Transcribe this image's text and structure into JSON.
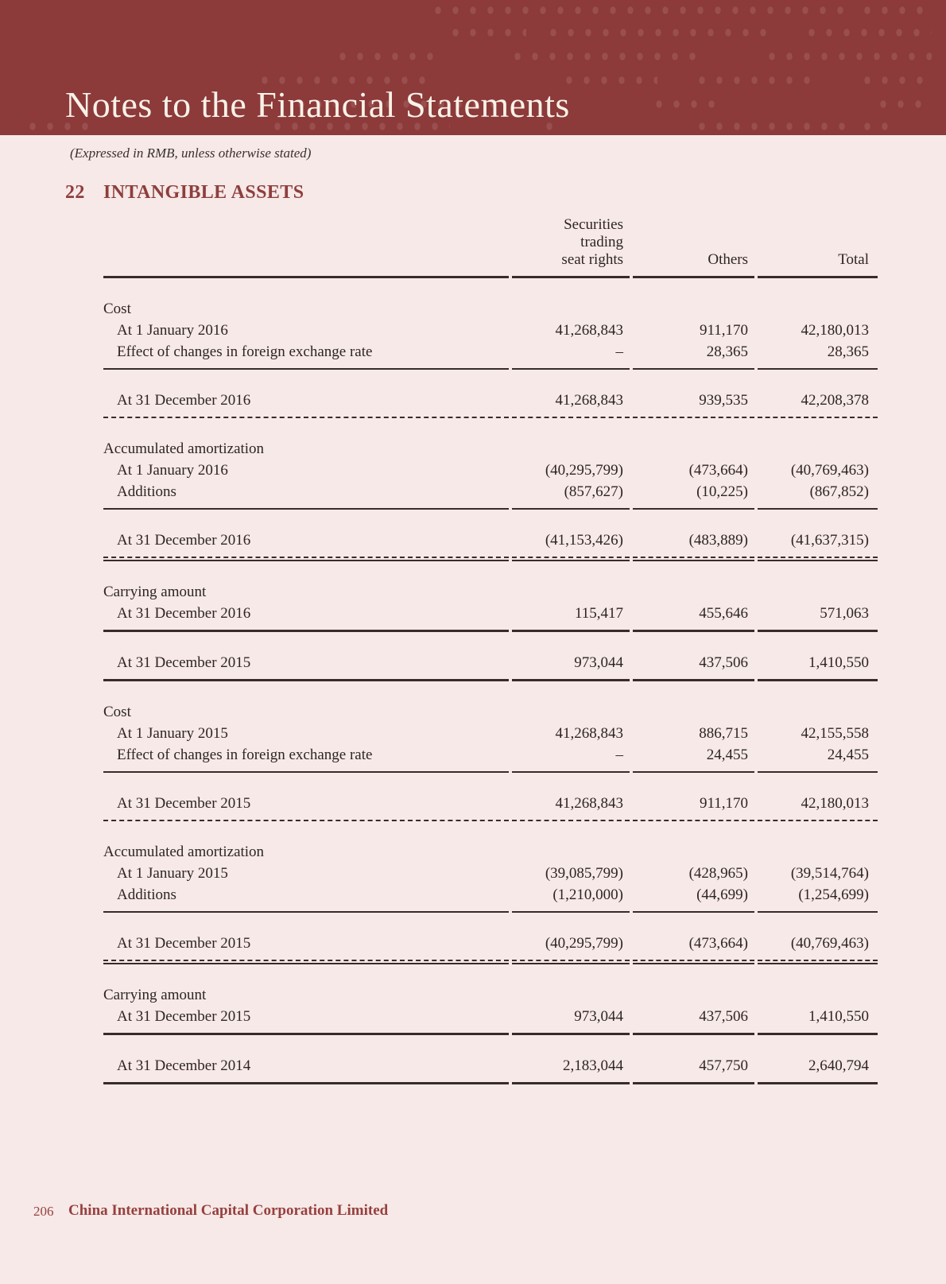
{
  "header": {
    "title": "Notes to the Financial Statements",
    "subtitle": "(Expressed in RMB, unless otherwise stated)"
  },
  "section": {
    "number": "22",
    "title": "INTANGIBLE ASSETS"
  },
  "table": {
    "header": {
      "col2": [
        "Securities",
        "trading",
        "seat rights"
      ],
      "col3": "Others",
      "col4": "Total"
    },
    "rows": [
      {
        "type": "section",
        "label": "Cost",
        "spacer_above": true
      },
      {
        "type": "data",
        "label": "At 1 January 2016",
        "values": [
          "41,268,843",
          "911,170",
          "42,180,013"
        ]
      },
      {
        "type": "data",
        "label": "Effect of changes in foreign exchange rate",
        "values": [
          "–",
          "28,365",
          "28,365"
        ],
        "rule_below": "solid"
      },
      {
        "type": "total",
        "label": "At 31 December 2016",
        "values": [
          "41,268,843",
          "939,535",
          "42,208,378"
        ],
        "rule_below": "dashed",
        "spacer_above": true
      },
      {
        "type": "section",
        "label": "Accumulated amortization",
        "spacer_above": true
      },
      {
        "type": "data",
        "label": "At 1 January 2016",
        "values": [
          "(40,295,799)",
          "(473,664)",
          "(40,769,463)"
        ]
      },
      {
        "type": "data",
        "label": "Additions",
        "values": [
          "(857,627)",
          "(10,225)",
          "(867,852)"
        ],
        "rule_below": "solid"
      },
      {
        "type": "total",
        "label": "At 31 December 2016",
        "values": [
          "(41,153,426)",
          "(483,889)",
          "(41,637,315)"
        ],
        "rule_below": "dashed-solid",
        "spacer_above": true
      },
      {
        "type": "section",
        "label": "Carrying amount",
        "spacer_above": true
      },
      {
        "type": "data",
        "label": "At 31 December 2016",
        "values": [
          "115,417",
          "455,646",
          "571,063"
        ],
        "rule_below": "strong"
      },
      {
        "type": "total",
        "label": "At 31 December 2015",
        "values": [
          "973,044",
          "437,506",
          "1,410,550"
        ],
        "rule_below": "strong",
        "spacer_above": true
      },
      {
        "type": "section",
        "label": "Cost",
        "spacer_above": true
      },
      {
        "type": "data",
        "label": "At 1 January 2015",
        "values": [
          "41,268,843",
          "886,715",
          "42,155,558"
        ]
      },
      {
        "type": "data",
        "label": "Effect of changes in foreign exchange rate",
        "values": [
          "–",
          "24,455",
          "24,455"
        ],
        "rule_below": "solid"
      },
      {
        "type": "total",
        "label": "At 31 December 2015",
        "values": [
          "41,268,843",
          "911,170",
          "42,180,013"
        ],
        "rule_below": "dashed",
        "spacer_above": true
      },
      {
        "type": "section",
        "label": "Accumulated amortization",
        "spacer_above": true
      },
      {
        "type": "data",
        "label": "At 1 January 2015",
        "values": [
          "(39,085,799)",
          "(428,965)",
          "(39,514,764)"
        ]
      },
      {
        "type": "data",
        "label": "Additions",
        "values": [
          "(1,210,000)",
          "(44,699)",
          "(1,254,699)"
        ],
        "rule_below": "solid"
      },
      {
        "type": "total",
        "label": "At 31 December 2015",
        "values": [
          "(40,295,799)",
          "(473,664)",
          "(40,769,463)"
        ],
        "rule_below": "dashed-solid",
        "spacer_above": true
      },
      {
        "type": "section",
        "label": "Carrying amount",
        "spacer_above": true
      },
      {
        "type": "data",
        "label": "At 31 December 2015",
        "values": [
          "973,044",
          "437,506",
          "1,410,550"
        ],
        "rule_below": "strong"
      },
      {
        "type": "total",
        "label": "At 31 December 2014",
        "values": [
          "2,183,044",
          "457,750",
          "2,640,794"
        ],
        "rule_below": "strong",
        "spacer_above": true
      }
    ]
  },
  "footer": {
    "page_number": "206",
    "company": "China International Capital Corporation Limited"
  },
  "colors": {
    "band": "#8c3a3a",
    "page_background": "#f6e9e7",
    "accent": "#8e3e3d",
    "text": "#2e2522",
    "rule": "#382c28"
  }
}
